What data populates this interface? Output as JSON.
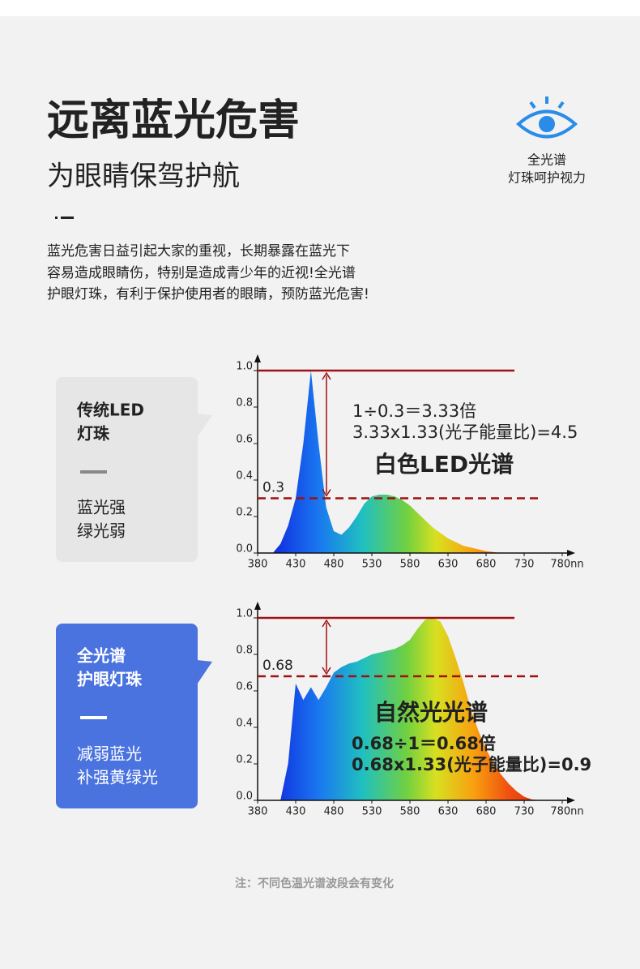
{
  "header": {
    "title": "远离蓝光危害",
    "subtitle": "为眼睛保驾护航",
    "badge": [
      "全光谱",
      "灯珠呵护视力"
    ]
  },
  "intro": [
    "蓝光危害日益引起大家的重视，长期暴露在蓝光下",
    "容易造成眼睛伤，特别是造成青少年的近视!全光谱",
    "护眼灯珠，有利于保护使用者的眼睛，预防蓝光危害!"
  ],
  "cards": [
    {
      "title": [
        "传统LED",
        "灯珠"
      ],
      "text": [
        "蓝光强",
        "绿光弱"
      ]
    },
    {
      "title": [
        "全光谱",
        "护眼灯珠"
      ],
      "text": [
        "减弱蓝光",
        "补强黄绿光"
      ]
    }
  ],
  "chart_data": [
    {
      "type": "area",
      "title": "白色LED光谱",
      "annotations": [
        "1÷0.3＝3.33倍",
        "3.33x1.33(光子能量比)=4.5"
      ],
      "x": [
        400,
        410,
        420,
        430,
        440,
        450,
        460,
        470,
        480,
        490,
        500,
        510,
        520,
        530,
        540,
        550,
        560,
        570,
        580,
        590,
        600,
        610,
        620,
        630,
        640,
        650,
        660,
        670,
        680,
        690,
        700
      ],
      "values": [
        0,
        0.05,
        0.15,
        0.3,
        0.6,
        1.0,
        0.6,
        0.25,
        0.12,
        0.1,
        0.14,
        0.2,
        0.27,
        0.31,
        0.32,
        0.32,
        0.31,
        0.29,
        0.26,
        0.22,
        0.18,
        0.14,
        0.11,
        0.08,
        0.06,
        0.04,
        0.03,
        0.02,
        0.01,
        0.005,
        0
      ],
      "xlim": [
        380,
        780
      ],
      "xticks": [
        380,
        430,
        480,
        530,
        580,
        630,
        680,
        730,
        {
          "value": 780,
          "label": "780nn"
        }
      ],
      "ylim": [
        0,
        1
      ],
      "yticks": [
        {
          "value": 0,
          "label": "0.0"
        },
        0.2,
        0.4,
        0.6,
        0.8,
        {
          "value": 1,
          "label": "1.0"
        }
      ],
      "peak_line": 1,
      "ref_line": 0.3
    },
    {
      "type": "area",
      "title": "自然光光谱",
      "annotations": [
        "0.68÷1＝0.68倍",
        "0.68x1.33(光子能量比)=0.9"
      ],
      "x": [
        410,
        420,
        430,
        440,
        450,
        460,
        470,
        480,
        490,
        500,
        510,
        520,
        530,
        540,
        550,
        560,
        570,
        580,
        590,
        600,
        610,
        620,
        630,
        640,
        650,
        660,
        670,
        680,
        690,
        700,
        710,
        720,
        730,
        740,
        750
      ],
      "values": [
        0,
        0.2,
        0.64,
        0.55,
        0.62,
        0.55,
        0.62,
        0.7,
        0.73,
        0.75,
        0.76,
        0.78,
        0.8,
        0.81,
        0.82,
        0.83,
        0.85,
        0.88,
        0.94,
        0.99,
        1.0,
        0.98,
        0.9,
        0.78,
        0.65,
        0.5,
        0.38,
        0.28,
        0.2,
        0.14,
        0.09,
        0.05,
        0.02,
        0.005,
        0
      ],
      "xlim": [
        380,
        780
      ],
      "xticks": [
        380,
        430,
        480,
        530,
        580,
        630,
        680,
        730,
        {
          "value": 780,
          "label": "780nn"
        }
      ],
      "ylim": [
        0,
        1
      ],
      "yticks": [
        {
          "value": 0,
          "label": "0.0"
        },
        0.2,
        0.4,
        0.6,
        0.8,
        {
          "value": 1,
          "label": "1.0"
        }
      ],
      "peak_line": 1,
      "ref_line": 0.68
    }
  ],
  "footnote": "注：不同色温光谱波段会有变化"
}
